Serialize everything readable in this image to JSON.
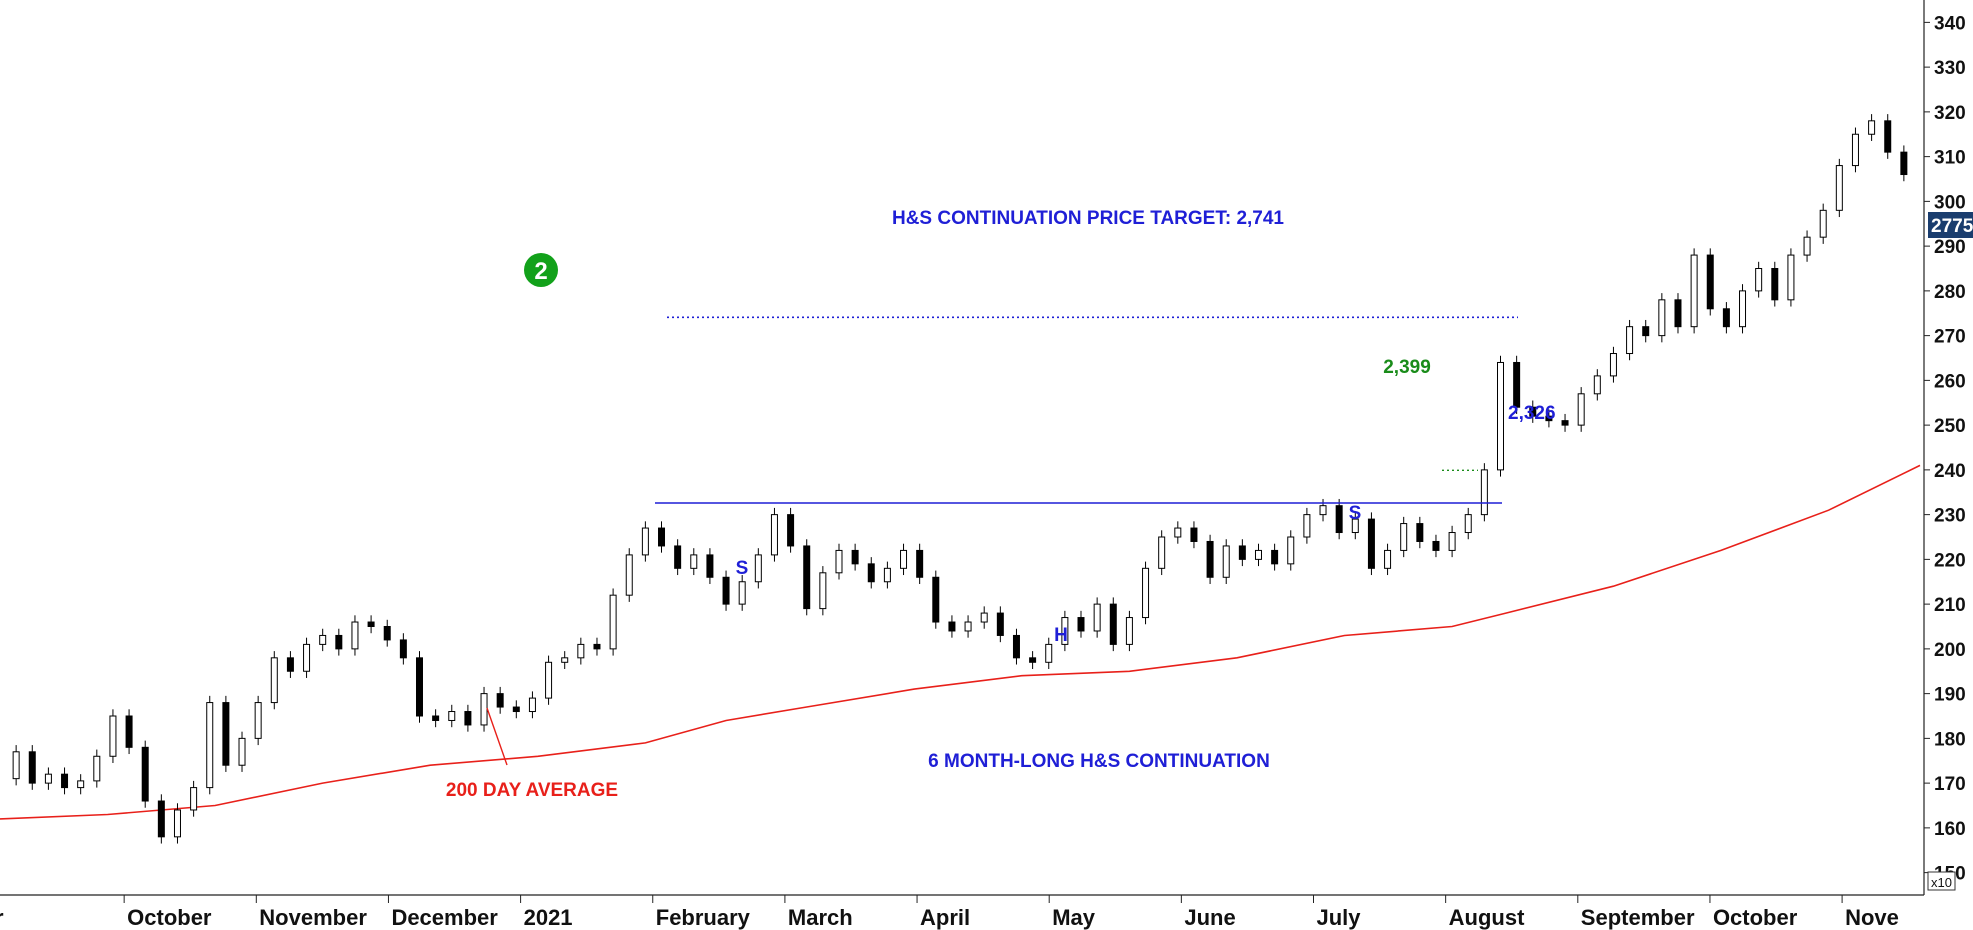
{
  "chart_data": {
    "type": "candlestick",
    "title": "",
    "xlabel": "",
    "ylabel": "",
    "y_axis_multiplier_label": "x10",
    "ylim": [
      1450,
      3450
    ],
    "y_ticks": [
      1500,
      1600,
      1700,
      1800,
      1900,
      2000,
      2100,
      2200,
      2300,
      2400,
      2500,
      2600,
      2700,
      2800,
      2900,
      3000,
      3100,
      3200,
      3300,
      3400
    ],
    "y_tick_labels": [
      "150",
      "160",
      "170",
      "180",
      "190",
      "200",
      "210",
      "220",
      "230",
      "240",
      "250",
      "260",
      "270",
      "280",
      "290",
      "300",
      "310",
      "320",
      "330",
      "340"
    ],
    "current_price": {
      "value": 2775,
      "label": "2775"
    },
    "x_labels": [
      "r",
      "October",
      "November",
      "December",
      "2021",
      "February",
      "March",
      "April",
      "May",
      "June",
      "July",
      "August",
      "September",
      "October",
      "Nove"
    ],
    "price_series": [
      [
        0,
        1710
      ],
      [
        6,
        1770
      ],
      [
        12,
        1700
      ],
      [
        18,
        1720
      ],
      [
        24,
        1690
      ],
      [
        30,
        1705
      ],
      [
        36,
        1760
      ],
      [
        42,
        1850
      ],
      [
        48,
        1780
      ],
      [
        54,
        1660
      ],
      [
        60,
        1580
      ],
      [
        66,
        1640
      ],
      [
        72,
        1690
      ],
      [
        78,
        1880
      ],
      [
        84,
        1740
      ],
      [
        90,
        1800
      ],
      [
        96,
        1880
      ],
      [
        102,
        1980
      ],
      [
        108,
        1950
      ],
      [
        114,
        2010
      ],
      [
        120,
        2030
      ],
      [
        126,
        2000
      ],
      [
        132,
        2060
      ],
      [
        138,
        2050
      ],
      [
        144,
        2020
      ],
      [
        150,
        1980
      ],
      [
        156,
        1850
      ],
      [
        162,
        1840
      ],
      [
        168,
        1860
      ],
      [
        174,
        1830
      ],
      [
        180,
        1900
      ],
      [
        186,
        1870
      ],
      [
        192,
        1860
      ],
      [
        198,
        1890
      ],
      [
        204,
        1970
      ],
      [
        210,
        1980
      ],
      [
        216,
        2010
      ],
      [
        222,
        2000
      ],
      [
        228,
        2120
      ],
      [
        234,
        2210
      ],
      [
        240,
        2270
      ],
      [
        246,
        2230
      ],
      [
        252,
        2180
      ],
      [
        258,
        2210
      ],
      [
        264,
        2160
      ],
      [
        270,
        2100
      ],
      [
        276,
        2150
      ],
      [
        282,
        2210
      ],
      [
        288,
        2300
      ],
      [
        294,
        2230
      ],
      [
        300,
        2090
      ],
      [
        306,
        2170
      ],
      [
        312,
        2220
      ],
      [
        318,
        2190
      ],
      [
        324,
        2150
      ],
      [
        330,
        2180
      ],
      [
        336,
        2220
      ],
      [
        342,
        2160
      ],
      [
        348,
        2060
      ],
      [
        354,
        2040
      ],
      [
        360,
        2060
      ],
      [
        366,
        2080
      ],
      [
        372,
        2030
      ],
      [
        378,
        1980
      ],
      [
        384,
        1970
      ],
      [
        390,
        2010
      ],
      [
        396,
        2070
      ],
      [
        402,
        2040
      ],
      [
        408,
        2100
      ],
      [
        414,
        2010
      ],
      [
        420,
        2070
      ],
      [
        426,
        2180
      ],
      [
        432,
        2250
      ],
      [
        438,
        2270
      ],
      [
        444,
        2240
      ],
      [
        450,
        2160
      ],
      [
        456,
        2230
      ],
      [
        462,
        2200
      ],
      [
        468,
        2220
      ],
      [
        474,
        2190
      ],
      [
        480,
        2250
      ],
      [
        486,
        2300
      ],
      [
        492,
        2320
      ],
      [
        498,
        2260
      ],
      [
        504,
        2290
      ],
      [
        510,
        2180
      ],
      [
        516,
        2220
      ],
      [
        522,
        2280
      ],
      [
        528,
        2240
      ],
      [
        534,
        2220
      ],
      [
        540,
        2260
      ],
      [
        546,
        2300
      ],
      [
        552,
        2400
      ],
      [
        558,
        2640
      ],
      [
        564,
        2540
      ],
      [
        570,
        2520
      ],
      [
        576,
        2510
      ],
      [
        582,
        2500
      ],
      [
        588,
        2570
      ],
      [
        594,
        2610
      ],
      [
        600,
        2660
      ],
      [
        606,
        2720
      ],
      [
        612,
        2700
      ],
      [
        618,
        2780
      ],
      [
        624,
        2720
      ],
      [
        630,
        2880
      ],
      [
        636,
        2760
      ],
      [
        642,
        2720
      ],
      [
        648,
        2800
      ],
      [
        654,
        2850
      ],
      [
        660,
        2780
      ],
      [
        666,
        2880
      ],
      [
        672,
        2920
      ],
      [
        678,
        2980
      ],
      [
        684,
        3080
      ],
      [
        690,
        3150
      ],
      [
        696,
        3180
      ],
      [
        702,
        3110
      ],
      [
        708,
        3060
      ]
    ],
    "moving_average_200": [
      [
        0,
        1620
      ],
      [
        40,
        1630
      ],
      [
        80,
        1650
      ],
      [
        120,
        1700
      ],
      [
        160,
        1740
      ],
      [
        200,
        1760
      ],
      [
        240,
        1790
      ],
      [
        270,
        1840
      ],
      [
        300,
        1870
      ],
      [
        340,
        1910
      ],
      [
        380,
        1940
      ],
      [
        420,
        1950
      ],
      [
        460,
        1980
      ],
      [
        500,
        2030
      ],
      [
        540,
        2050
      ],
      [
        560,
        2080
      ],
      [
        600,
        2140
      ],
      [
        640,
        2220
      ],
      [
        680,
        2310
      ],
      [
        714,
        2410
      ]
    ],
    "annotations": {
      "target_title": "H&S CONTINUATION PRICE TARGET: 2,741",
      "target_level": 2741,
      "neckline_level": 2326,
      "neckline_label": "2,326",
      "breakout_level": 2399,
      "breakout_label": "2,399",
      "marker_number": "2",
      "left_shoulder": "S",
      "head": "H",
      "right_shoulder": "S",
      "pattern_label": "6 MONTH-LONG H&S CONTINUATION",
      "ma_label": "200 DAY AVERAGE"
    },
    "colors": {
      "annotation_blue": "#1f1fd6",
      "ma_red": "#e8201a",
      "green_label": "#1a8c1a",
      "marker_green": "#12a11a",
      "price_tag_bg": "#1a3d6e"
    }
  }
}
